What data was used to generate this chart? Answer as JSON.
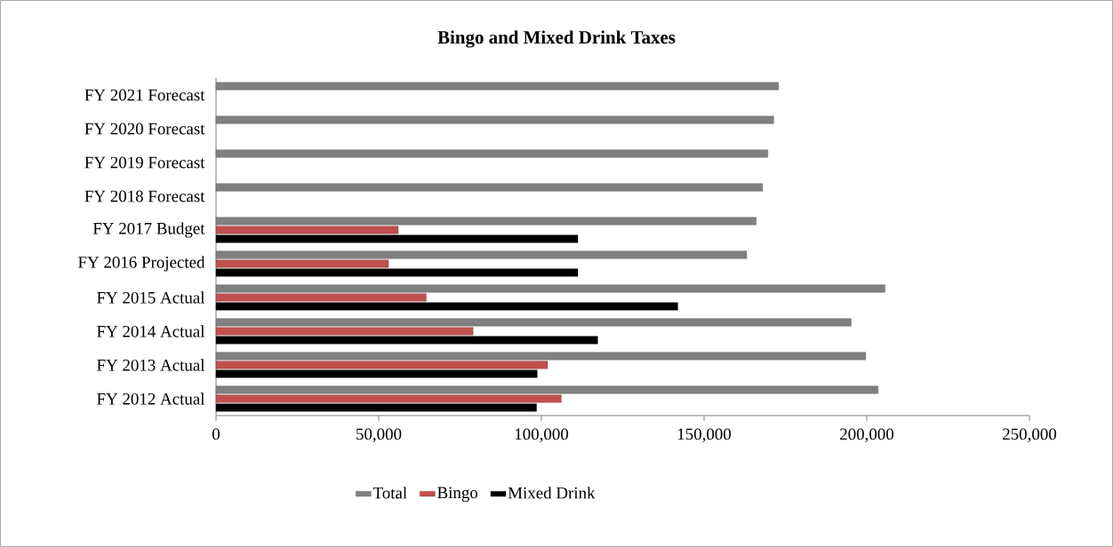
{
  "chart_data": {
    "type": "bar",
    "orientation": "horizontal",
    "title": "Bingo and Mixed Drink Taxes",
    "categories": [
      "FY 2021 Forecast",
      "FY 2020 Forecast",
      "FY 2019 Forecast",
      "FY 2018 Forecast",
      "FY 2017 Budget",
      "FY 2016 Projected",
      "FY 2015 Actual",
      "FY 2014 Actual",
      "FY 2013 Actual",
      "FY 2012 Actual"
    ],
    "series": [
      {
        "name": "Total",
        "color": "#808080",
        "values": [
          172900,
          171400,
          169600,
          168000,
          166000,
          163100,
          205600,
          195200,
          199700,
          203500
        ]
      },
      {
        "name": "Bingo",
        "color": "#c0504d",
        "values": [
          null,
          null,
          null,
          null,
          56000,
          53000,
          64600,
          79000,
          101900,
          106100
        ]
      },
      {
        "name": "Mixed Drink",
        "color": "#000000",
        "values": [
          null,
          null,
          null,
          null,
          111200,
          111200,
          141900,
          117300,
          98700,
          98500
        ]
      }
    ],
    "xlim": [
      0,
      250000
    ],
    "xticks": [
      0,
      {
        "value": 50000,
        "label": "50,000"
      },
      {
        "value": 100000,
        "label": "100,000"
      },
      {
        "value": 150000,
        "label": "150,000"
      },
      {
        "value": 200000,
        "label": "200,000"
      },
      {
        "value": 250000,
        "label": "250,000"
      }
    ],
    "grid": false,
    "legend": "bottom"
  }
}
